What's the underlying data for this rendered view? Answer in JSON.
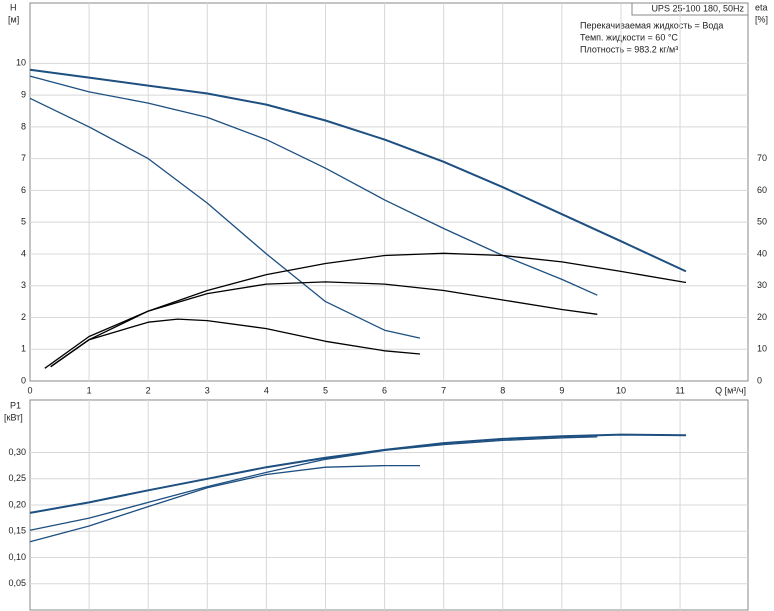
{
  "chart_data": [
    {
      "type": "line",
      "y_label": "H",
      "y_unit": "[м]",
      "y2_label": "eta",
      "y2_unit": "[%]",
      "x_label": "Q [м³/ч]",
      "model": "UPS 25-100  180, 50Hz",
      "notes": [
        "Перекачиваемая жидкость = Вода",
        "Темп. жидкости = 60 °C",
        "Плотность = 983.2 кг/м³"
      ],
      "xlim": [
        0,
        12.15
      ],
      "xticks": [
        0,
        1,
        2,
        3,
        4,
        5,
        6,
        7,
        8,
        9,
        10,
        11
      ],
      "ylim": [
        0,
        11.9
      ],
      "yticks": [
        0,
        1,
        2,
        3,
        4,
        5,
        6,
        7,
        8,
        9,
        10
      ],
      "y2lim": [
        0,
        119
      ],
      "y2ticks": [
        0,
        10,
        20,
        30,
        40,
        50,
        60,
        70
      ],
      "grid": true,
      "series": [
        {
          "color": "#1d4f80",
          "x": [
            0,
            1,
            2,
            3,
            4,
            5,
            6,
            7,
            8,
            9,
            10,
            11.1
          ],
          "values": [
            9.8,
            9.55,
            9.3,
            9.05,
            8.7,
            8.2,
            7.6,
            6.9,
            6.1,
            5.25,
            4.4,
            3.45
          ]
        },
        {
          "color": "#1d4f80",
          "x": [
            0,
            1,
            2,
            3,
            4,
            5,
            6,
            7,
            8,
            9,
            9.6
          ],
          "values": [
            9.6,
            9.1,
            8.75,
            8.3,
            7.6,
            6.7,
            5.7,
            4.8,
            3.95,
            3.2,
            2.7
          ]
        },
        {
          "color": "#1d4f80",
          "x": [
            0,
            1,
            2,
            3,
            4,
            5,
            6,
            6.6
          ],
          "values": [
            8.9,
            8.0,
            7.0,
            5.6,
            4.0,
            2.5,
            1.6,
            1.35
          ]
        },
        {
          "color": "#000000",
          "axis": "y2",
          "x": [
            0.25,
            1,
            2,
            3,
            4,
            5,
            6,
            7,
            8,
            9,
            10,
            11.1
          ],
          "values": [
            4,
            14,
            22,
            28.5,
            33.5,
            37,
            39.5,
            40.2,
            39.5,
            37.5,
            34.5,
            31
          ]
        },
        {
          "color": "#000000",
          "axis": "y2",
          "x": [
            0.35,
            1,
            2,
            3,
            4,
            5,
            6,
            7,
            8,
            9,
            9.6
          ],
          "values": [
            4.5,
            13,
            22,
            27.5,
            30.5,
            31.2,
            30.5,
            28.5,
            25.5,
            22.5,
            21
          ]
        },
        {
          "color": "#000000",
          "axis": "y2",
          "x": [
            0.35,
            1,
            2,
            2.5,
            3,
            4,
            5,
            6,
            6.6
          ],
          "values": [
            4.5,
            13,
            18.5,
            19.5,
            19,
            16.5,
            12.5,
            9.5,
            8.5
          ]
        }
      ]
    },
    {
      "type": "line",
      "y_label": "P1",
      "y_unit": "[кВт]",
      "xlim": [
        0,
        12.15
      ],
      "ylim": [
        0,
        0.4
      ],
      "yticks": [
        {
          "value": 0.05,
          "label": "0,05"
        },
        {
          "value": 0.1,
          "label": "0,10"
        },
        {
          "value": 0.15,
          "label": "0,15"
        },
        {
          "value": 0.2,
          "label": "0,20"
        },
        {
          "value": 0.25,
          "label": "0,25"
        },
        {
          "value": 0.3,
          "label": "0,30"
        }
      ],
      "grid": true,
      "series": [
        {
          "color": "#1d4f80",
          "x": [
            0,
            1,
            2,
            3,
            4,
            5,
            6,
            7,
            8,
            9,
            10,
            11.1
          ],
          "values": [
            0.185,
            0.205,
            0.228,
            0.25,
            0.272,
            0.29,
            0.305,
            0.318,
            0.326,
            0.331,
            0.334,
            0.333
          ]
        },
        {
          "color": "#1d4f80",
          "x": [
            0,
            1,
            2,
            3,
            4,
            5,
            6,
            7,
            8,
            9,
            9.6
          ],
          "values": [
            0.152,
            0.175,
            0.205,
            0.235,
            0.262,
            0.287,
            0.304,
            0.315,
            0.323,
            0.328,
            0.33
          ]
        },
        {
          "color": "#1d4f80",
          "x": [
            0,
            1,
            2,
            3,
            4,
            5,
            6,
            6.6
          ],
          "values": [
            0.13,
            0.16,
            0.197,
            0.233,
            0.258,
            0.272,
            0.275,
            0.275
          ]
        }
      ]
    }
  ]
}
